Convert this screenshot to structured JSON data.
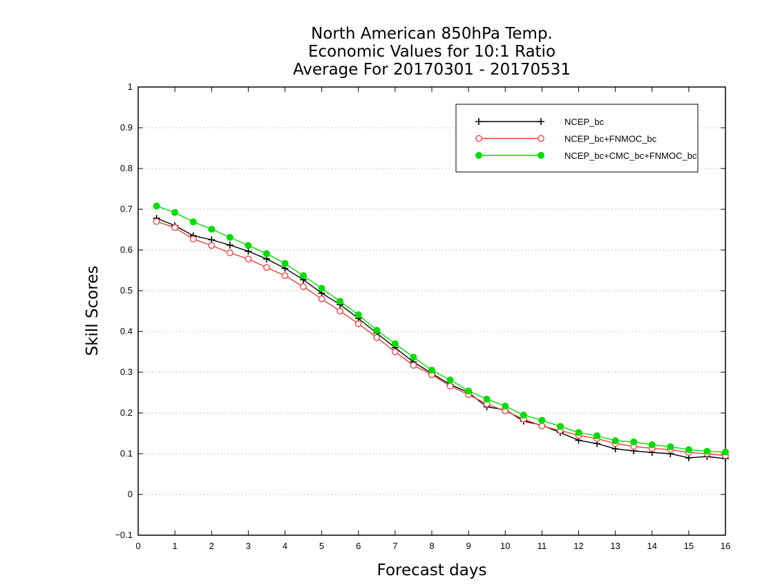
{
  "chart_data": {
    "type": "line",
    "title": [
      "North American 850hPa Temp.",
      "Economic Values for 10:1 Ratio",
      "Average For 20170301 - 20170531"
    ],
    "xlabel": "Forecast days",
    "ylabel": "Skill Scores",
    "xlim": [
      0,
      16
    ],
    "ylim": [
      -0.1,
      1
    ],
    "xticks": [
      "0",
      "1",
      "2",
      "3",
      "4",
      "5",
      "6",
      "7",
      "8",
      "9",
      "10",
      "11",
      "12",
      "13",
      "14",
      "15",
      "16"
    ],
    "yticks": [
      "−0.1",
      "0",
      "0.1",
      "0.2",
      "0.3",
      "0.4",
      "0.5",
      "0.6",
      "0.7",
      "0.8",
      "0.9",
      "1"
    ],
    "grid": true,
    "legend_position": "top-right",
    "x": [
      0.5,
      1,
      1.5,
      2,
      2.5,
      3,
      3.5,
      4,
      4.5,
      5,
      5.5,
      6,
      6.5,
      7,
      7.5,
      8,
      8.5,
      9,
      9.5,
      10,
      10.5,
      11,
      11.5,
      12,
      12.5,
      13,
      13.5,
      14,
      14.5,
      15,
      15.5,
      16
    ],
    "series": [
      {
        "name": "NCEP_bc",
        "color": "#000000",
        "marker": "plus",
        "values": [
          0.678,
          0.66,
          0.635,
          0.625,
          0.612,
          0.597,
          0.578,
          0.555,
          0.527,
          0.494,
          0.466,
          0.432,
          0.396,
          0.36,
          0.325,
          0.297,
          0.27,
          0.25,
          0.215,
          0.208,
          0.18,
          0.17,
          0.152,
          0.133,
          0.125,
          0.112,
          0.107,
          0.103,
          0.1,
          0.09,
          0.093,
          0.088
        ]
      },
      {
        "name": "NCEP_bc+FNMOC_bc",
        "color": "#ee3b3b",
        "marker": "open-circle",
        "values": [
          0.67,
          0.655,
          0.627,
          0.611,
          0.593,
          0.578,
          0.557,
          0.537,
          0.51,
          0.48,
          0.45,
          0.419,
          0.385,
          0.35,
          0.317,
          0.294,
          0.266,
          0.245,
          0.222,
          0.205,
          0.185,
          0.168,
          0.157,
          0.145,
          0.137,
          0.125,
          0.118,
          0.113,
          0.11,
          0.103,
          0.1,
          0.095
        ]
      },
      {
        "name": "NCEP_bc+CMC_bc+FNMOC_bc",
        "color": "#00dd00",
        "marker": "filled-circle",
        "values": [
          0.708,
          0.692,
          0.669,
          0.651,
          0.631,
          0.611,
          0.591,
          0.567,
          0.537,
          0.506,
          0.474,
          0.441,
          0.403,
          0.37,
          0.337,
          0.305,
          0.281,
          0.254,
          0.234,
          0.217,
          0.195,
          0.182,
          0.167,
          0.152,
          0.144,
          0.132,
          0.129,
          0.122,
          0.117,
          0.11,
          0.106,
          0.104
        ]
      }
    ]
  }
}
